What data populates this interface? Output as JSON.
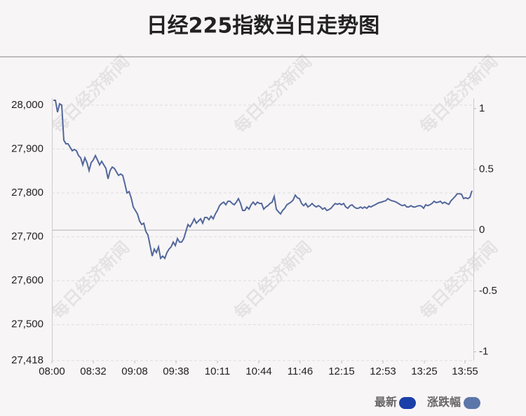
{
  "chart_data": {
    "type": "line",
    "title": "日经225指数当日走势图",
    "watermark": "每日经济新闻",
    "series": [
      {
        "name": "最新",
        "color": "#1b3fa8",
        "line_color": "#52689b",
        "values": [
          28011,
          28011,
          27984,
          28003,
          28000,
          27920,
          27912,
          27912,
          27904,
          27896,
          27899,
          27896,
          27885,
          27880,
          27864,
          27880,
          27869,
          27851,
          27869,
          27875,
          27885,
          27875,
          27864,
          27872,
          27864,
          27856,
          27832,
          27851,
          27859,
          27856,
          27848,
          27840,
          27843,
          27840,
          27821,
          27800,
          27803,
          27789,
          27768,
          27760,
          27752,
          27736,
          27728,
          27731,
          27712,
          27704,
          27680,
          27656,
          27672,
          27664,
          27677,
          27651,
          27656,
          27651,
          27664,
          27672,
          27677,
          27688,
          27680,
          27696,
          27688,
          27688,
          27696,
          27712,
          27728,
          27723,
          27731,
          27741,
          27731,
          27736,
          27741,
          27731,
          27744,
          27744,
          27739,
          27747,
          27741,
          27752,
          27760,
          27771,
          27776,
          27779,
          27773,
          27781,
          27781,
          27776,
          27773,
          27779,
          27787,
          27776,
          27760,
          27760,
          27768,
          27763,
          27773,
          27779,
          27773,
          27779,
          27776,
          27776,
          27763,
          27768,
          27771,
          27776,
          27779,
          27792,
          27763,
          27757,
          27752,
          27760,
          27765,
          27773,
          27776,
          27779,
          27784,
          27795,
          27789,
          27787,
          27776,
          27771,
          27776,
          27768,
          27771,
          27776,
          27771,
          27768,
          27771,
          27768,
          27763,
          27766,
          27760,
          27762,
          27765,
          27771,
          27776,
          27774,
          27776,
          27773,
          27776,
          27768,
          27765,
          27771,
          27773,
          27768,
          27765,
          27765,
          27768,
          27765,
          27768,
          27765,
          27770,
          27768,
          27771,
          27773,
          27776,
          27778,
          27779,
          27781,
          27782,
          27787,
          27784,
          27782,
          27781,
          27779,
          27776,
          27773,
          27771,
          27773,
          27768,
          27768,
          27771,
          27768,
          27768,
          27770,
          27771,
          27770,
          27765,
          27773,
          27771,
          27773,
          27776,
          27781,
          27778,
          27779,
          27781,
          27776,
          27779,
          27776,
          27774,
          27782,
          27787,
          27792,
          27798,
          27798,
          27797,
          27787,
          27789,
          27787,
          27790,
          27805
        ]
      }
    ],
    "y2_legend": {
      "name": "涨跌幅",
      "color": "#5b76a8"
    },
    "xlim": [
      -0.67,
      199.67
    ],
    "xticks": [
      {
        "value": -0.67,
        "label": "08:00"
      },
      {
        "value": 19,
        "label": "08:32"
      },
      {
        "value": 38.67,
        "label": "09:08"
      },
      {
        "value": 58.33,
        "label": "09:38"
      },
      {
        "value": 78,
        "label": "10:11"
      },
      {
        "value": 97.67,
        "label": "10:44"
      },
      {
        "value": 117.33,
        "label": "11:46"
      },
      {
        "value": 137,
        "label": "12:15"
      },
      {
        "value": 156.67,
        "label": "12:53"
      },
      {
        "value": 176.33,
        "label": "13:25"
      },
      {
        "value": 195.67,
        "label": "13:55"
      }
    ],
    "ylim": [
      27418,
      28011
    ],
    "yticks": [
      {
        "value": 27418,
        "label": "27,418"
      },
      {
        "value": 27500,
        "label": "27,500"
      },
      {
        "value": 27600,
        "label": "27,600"
      },
      {
        "value": 27700,
        "label": "27,700"
      },
      {
        "value": 27800,
        "label": "27,800"
      },
      {
        "value": 27900,
        "label": "27,900"
      },
      {
        "value": 28000,
        "label": "28,000"
      }
    ],
    "y2lim": [
      -1.072,
      1.068
    ],
    "y2ticks": [
      -1,
      -0.5,
      0,
      0.5,
      1
    ],
    "reference_y2": 0,
    "grid": true
  }
}
